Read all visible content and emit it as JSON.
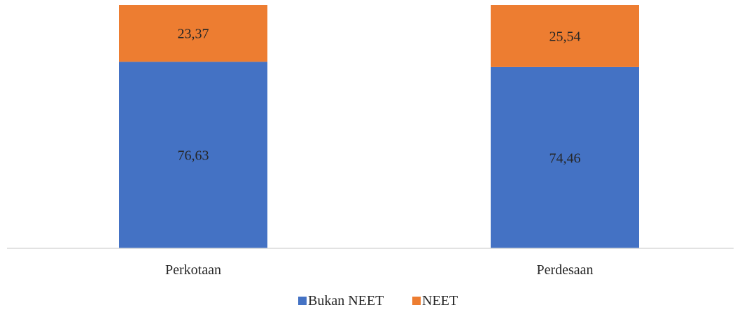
{
  "chart_data": {
    "type": "bar",
    "stacked": true,
    "percent": true,
    "categories": [
      "Perkotaan",
      "Perdesaan"
    ],
    "series": [
      {
        "name": "Bukan NEET",
        "values": [
          76.63,
          74.46
        ],
        "labels": [
          "76,63",
          "74,46"
        ],
        "color": "#4472C4"
      },
      {
        "name": "NEET",
        "values": [
          23.37,
          25.54
        ],
        "labels": [
          "23,37",
          "25,54"
        ],
        "color": "#ED7D31"
      }
    ],
    "ylim": [
      0,
      100
    ],
    "grid": false,
    "legend_position": "bottom"
  }
}
